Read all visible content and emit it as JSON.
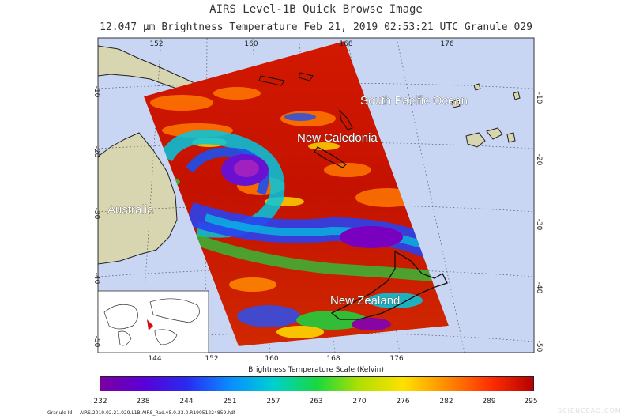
{
  "header": {
    "title": "AIRS Level-1B Quick Browse Image",
    "subtitle": "12.047 µm Brightness Temperature    Feb 21, 2019 02:53:21 UTC   Granule 029"
  },
  "map": {
    "labels": {
      "ocean": "South Pacific Ocean",
      "new_caledonia": "New Caledonia",
      "australia": "Australia",
      "new_zealand": "New Zealand"
    },
    "lon_ticks_top": [
      "152",
      "160",
      "168",
      "176"
    ],
    "lon_ticks_bottom": [
      "144",
      "152",
      "160",
      "168",
      "176"
    ],
    "lat_ticks_left": [
      "-10",
      "-20",
      "-30",
      "-40",
      "-50"
    ],
    "lat_ticks_right": [
      "-10",
      "-20",
      "-30",
      "-40",
      "-50"
    ]
  },
  "colorbar": {
    "title": "Brightness Temperature Scale (Kelvin)",
    "ticks": [
      "232",
      "238",
      "244",
      "251",
      "257",
      "263",
      "270",
      "276",
      "282",
      "289",
      "295"
    ]
  },
  "footer": {
    "granule_id": "Granule Id — AIRS.2019.02.21.029.L1B.AIRS_Rad.v5.0.23.0.R19051224859.hdf",
    "watermark": "SCIENCEAQ.COM"
  }
}
